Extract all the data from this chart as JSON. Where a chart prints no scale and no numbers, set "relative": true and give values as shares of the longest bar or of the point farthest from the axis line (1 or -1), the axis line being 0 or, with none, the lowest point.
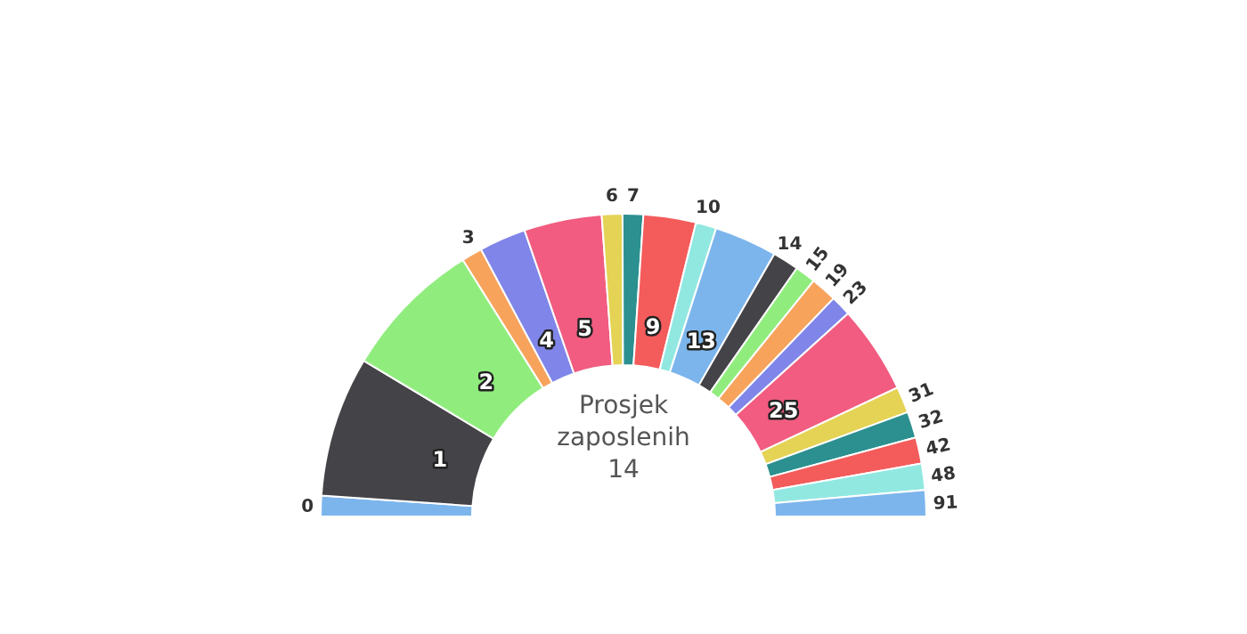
{
  "chart_data": {
    "type": "donut",
    "relative": true,
    "title": "Prosjek zaposlenih 14",
    "categories": [
      "0",
      "1",
      "2",
      "3",
      "4",
      "5",
      "6",
      "7",
      "9",
      "10",
      "13",
      "14",
      "15",
      "19",
      "23",
      "25",
      "31",
      "32",
      "42",
      "48",
      "91"
    ],
    "values": [
      2.2,
      15,
      15,
      2.2,
      5,
      8.3,
      2.2,
      2.2,
      5.6,
      2.2,
      6.7,
      2.8,
      2.2,
      2.8,
      2.2,
      9.4,
      2.8,
      2.8,
      2.8,
      2.8,
      2.8
    ],
    "colors": [
      "#7cb5ec",
      "#434348",
      "#90ed7d",
      "#f7a35c",
      "#8085e9",
      "#f15c80",
      "#e4d354",
      "#2b908f",
      "#f45b5b",
      "#91e8e1",
      "#7cb5ec",
      "#434348",
      "#90ed7d",
      "#f7a35c",
      "#8085e9",
      "#f15c80",
      "#e4d354",
      "#2b908f",
      "#f45b5b",
      "#91e8e1",
      "#7cb5ec"
    ]
  }
}
